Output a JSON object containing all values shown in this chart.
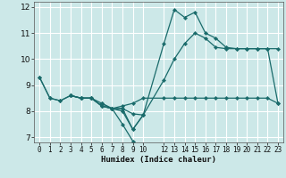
{
  "title": "",
  "xlabel": "Humidex (Indice chaleur)",
  "bg_color": "#cce8e8",
  "grid_color": "#ffffff",
  "line_color": "#1a6b6b",
  "xlim": [
    -0.5,
    23.5
  ],
  "ylim": [
    6.8,
    12.2
  ],
  "yticks": [
    7,
    8,
    9,
    10,
    11,
    12
  ],
  "xtick_positions": [
    0,
    1,
    2,
    3,
    4,
    5,
    6,
    7,
    8,
    9,
    10,
    12,
    13,
    14,
    15,
    16,
    17,
    18,
    19,
    20,
    21,
    22,
    23
  ],
  "xtick_labels": [
    "0",
    "1",
    "2",
    "3",
    "4",
    "5",
    "6",
    "7",
    "8",
    "9",
    "10",
    "12",
    "13",
    "14",
    "15",
    "16",
    "17",
    "18",
    "19",
    "20",
    "21",
    "22",
    "23"
  ],
  "lines": [
    {
      "x": [
        0,
        1,
        2,
        3,
        4,
        5,
        6,
        7,
        8,
        9,
        10,
        12,
        13,
        14,
        15,
        16,
        17,
        18,
        19,
        20,
        21,
        22,
        23
      ],
      "y": [
        9.3,
        8.5,
        8.4,
        8.6,
        8.5,
        8.5,
        8.2,
        8.1,
        8.1,
        7.9,
        7.85,
        10.6,
        11.9,
        11.6,
        11.8,
        11.0,
        10.8,
        10.45,
        10.4,
        10.4,
        10.4,
        10.4,
        8.3
      ]
    },
    {
      "x": [
        0,
        1,
        2,
        3,
        4,
        5,
        6,
        7,
        8,
        9,
        10,
        12,
        13,
        14,
        15,
        16,
        17,
        18,
        19,
        20,
        21,
        22,
        23
      ],
      "y": [
        9.3,
        8.5,
        8.4,
        8.6,
        8.5,
        8.5,
        8.2,
        8.1,
        8.2,
        8.3,
        8.5,
        8.5,
        8.5,
        8.5,
        8.5,
        8.5,
        8.5,
        8.5,
        8.5,
        8.5,
        8.5,
        8.5,
        8.3
      ]
    },
    {
      "x": [
        3,
        4,
        5,
        6,
        7,
        8,
        9,
        10,
        12,
        13,
        14,
        15,
        16,
        17,
        18,
        19,
        20,
        21,
        22,
        23
      ],
      "y": [
        8.6,
        8.5,
        8.5,
        8.3,
        8.1,
        8.1,
        7.3,
        7.85,
        9.2,
        10.0,
        10.6,
        11.0,
        10.8,
        10.45,
        10.4,
        10.4,
        10.4,
        10.4,
        10.4,
        10.4
      ]
    },
    {
      "x": [
        3,
        4,
        5,
        6,
        7,
        8,
        9,
        10
      ],
      "y": [
        8.6,
        8.5,
        8.5,
        8.2,
        8.1,
        8.0,
        7.3,
        7.85
      ]
    },
    {
      "x": [
        6,
        7,
        8,
        9
      ],
      "y": [
        8.3,
        8.1,
        7.5,
        6.85
      ]
    }
  ]
}
